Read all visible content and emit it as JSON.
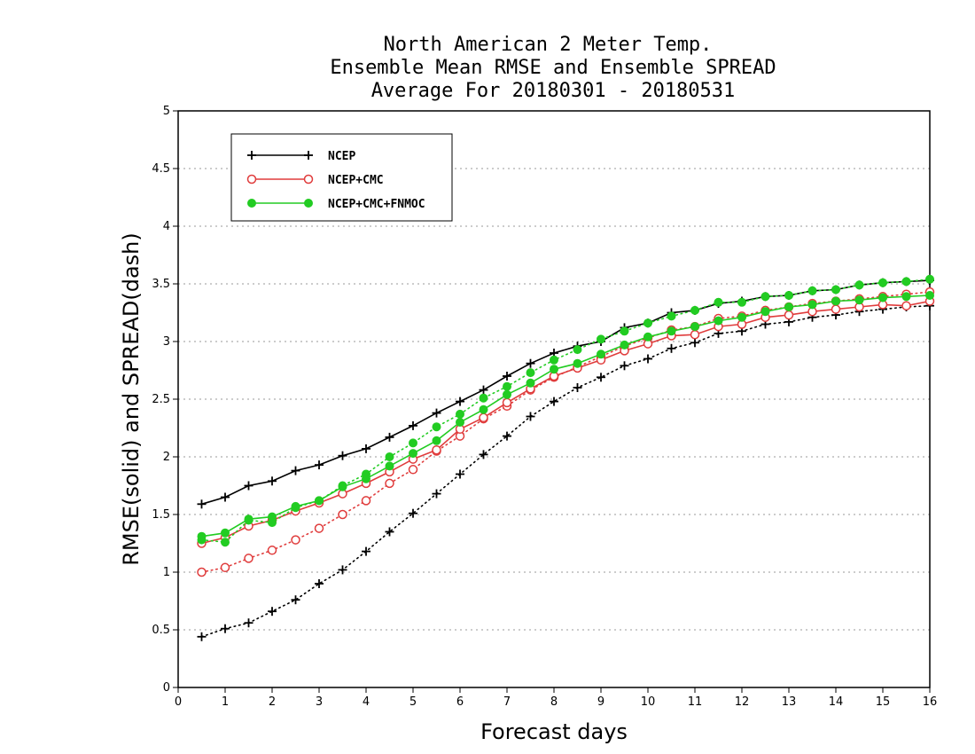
{
  "chart_data": {
    "type": "line",
    "title_lines": [
      "North American 2 Meter Temp.",
      "Ensemble Mean RMSE and Ensemble SPREAD",
      "Average For 20180301 - 20180531"
    ],
    "xlabel": "Forecast days",
    "ylabel": "RMSE(solid) and SPREAD(dash)",
    "xlim": [
      0,
      16
    ],
    "ylim": [
      0,
      5
    ],
    "x_ticks": [
      0,
      1,
      2,
      3,
      4,
      5,
      6,
      7,
      8,
      9,
      10,
      11,
      12,
      13,
      14,
      15,
      16
    ],
    "y_ticks": [
      0,
      0.5,
      1,
      1.5,
      2,
      2.5,
      3,
      3.5,
      4,
      4.5,
      5
    ],
    "y_tick_labels": [
      "0",
      "0.5",
      "1",
      "1.5",
      "2",
      "2.5",
      "3",
      "3.5",
      "4",
      "4.5",
      "5"
    ],
    "grid": "horizontal dotted",
    "legend_position": "top-left",
    "x": [
      0.5,
      1,
      1.5,
      2,
      2.5,
      3,
      3.5,
      4,
      4.5,
      5,
      5.5,
      6,
      6.5,
      7,
      7.5,
      8,
      8.5,
      9,
      9.5,
      10,
      10.5,
      11,
      11.5,
      12,
      12.5,
      13,
      13.5,
      14,
      14.5,
      15,
      15.5,
      16
    ],
    "series": [
      {
        "name": "NCEP",
        "color": "#000000",
        "marker": "plus",
        "rmse": [
          1.59,
          1.65,
          1.75,
          1.79,
          1.88,
          1.93,
          2.01,
          2.07,
          2.17,
          2.27,
          2.38,
          2.48,
          2.58,
          2.7,
          2.81,
          2.9,
          2.96,
          3.0,
          3.12,
          3.16,
          3.25,
          3.27,
          3.33,
          3.35,
          3.39,
          3.4,
          3.44,
          3.45,
          3.49,
          3.51,
          3.52,
          3.53
        ],
        "spread": [
          0.44,
          0.51,
          0.56,
          0.66,
          0.76,
          0.9,
          1.02,
          1.18,
          1.35,
          1.51,
          1.68,
          1.85,
          2.02,
          2.18,
          2.35,
          2.48,
          2.6,
          2.69,
          2.79,
          2.85,
          2.94,
          2.99,
          3.07,
          3.09,
          3.15,
          3.17,
          3.21,
          3.23,
          3.26,
          3.28,
          3.3,
          3.31
        ]
      },
      {
        "name": "NCEP+CMC",
        "color": "#e03c3c",
        "marker": "open-circle",
        "rmse": [
          1.25,
          1.3,
          1.4,
          1.45,
          1.53,
          1.6,
          1.68,
          1.77,
          1.87,
          1.98,
          2.06,
          2.24,
          2.34,
          2.47,
          2.59,
          2.7,
          2.77,
          2.84,
          2.92,
          2.98,
          3.05,
          3.06,
          3.13,
          3.15,
          3.21,
          3.23,
          3.26,
          3.28,
          3.3,
          3.32,
          3.31,
          3.35
        ],
        "spread": [
          1.0,
          1.04,
          1.12,
          1.19,
          1.28,
          1.38,
          1.5,
          1.62,
          1.77,
          1.89,
          2.05,
          2.18,
          2.33,
          2.44,
          2.58,
          2.69,
          2.78,
          2.87,
          2.96,
          3.03,
          3.1,
          3.13,
          3.2,
          3.22,
          3.27,
          3.3,
          3.33,
          3.35,
          3.37,
          3.39,
          3.41,
          3.43
        ]
      },
      {
        "name": "NCEP+CMC+FNMOC",
        "color": "#22cc22",
        "marker": "filled-circle",
        "rmse": [
          1.31,
          1.34,
          1.46,
          1.48,
          1.57,
          1.62,
          1.74,
          1.81,
          1.92,
          2.03,
          2.14,
          2.3,
          2.41,
          2.54,
          2.64,
          2.76,
          2.81,
          2.89,
          2.97,
          3.04,
          3.09,
          3.13,
          3.18,
          3.21,
          3.26,
          3.3,
          3.32,
          3.35,
          3.36,
          3.38,
          3.39,
          3.4
        ],
        "spread": [
          1.28,
          1.26,
          1.45,
          1.43,
          1.56,
          1.62,
          1.75,
          1.85,
          2.0,
          2.12,
          2.26,
          2.37,
          2.51,
          2.61,
          2.73,
          2.84,
          2.93,
          3.02,
          3.09,
          3.16,
          3.22,
          3.27,
          3.34,
          3.34,
          3.39,
          3.4,
          3.44,
          3.45,
          3.49,
          3.51,
          3.52,
          3.54
        ]
      }
    ]
  }
}
